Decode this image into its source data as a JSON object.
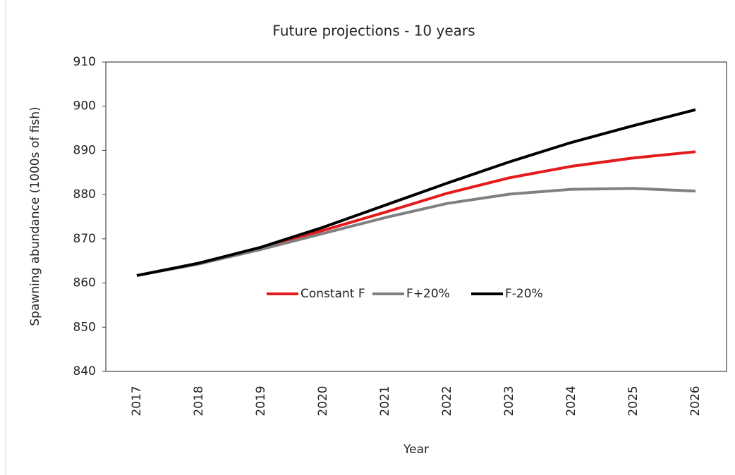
{
  "chart_data": {
    "type": "line",
    "title": "Future projections - 10 years",
    "x_label": "Year",
    "y_label": "Spawning abundance (1000s of fish)",
    "categories": [
      "2017",
      "2018",
      "2019",
      "2020",
      "2021",
      "2022",
      "2023",
      "2024",
      "2025",
      "2026"
    ],
    "series": [
      {
        "name": "Constant F",
        "color": "#e41a1c",
        "values": [
          861.7,
          864.4,
          867.9,
          871.9,
          876.0,
          880.3,
          883.8,
          886.4,
          888.3,
          889.7
        ]
      },
      {
        "name": "F+20%",
        "color": "#808080",
        "values": [
          861.7,
          864.3,
          867.6,
          871.2,
          874.8,
          878.0,
          880.1,
          881.2,
          881.4,
          880.8
        ]
      },
      {
        "name": "F-20%",
        "color": "#000000",
        "values": [
          861.7,
          864.5,
          868.1,
          872.6,
          877.6,
          882.6,
          887.4,
          891.8,
          895.6,
          899.2
        ]
      }
    ],
    "ylim": [
      840,
      910
    ],
    "yticks": [
      840,
      850,
      860,
      870,
      880,
      890,
      900,
      910
    ],
    "grid": false,
    "legend": "center"
  }
}
